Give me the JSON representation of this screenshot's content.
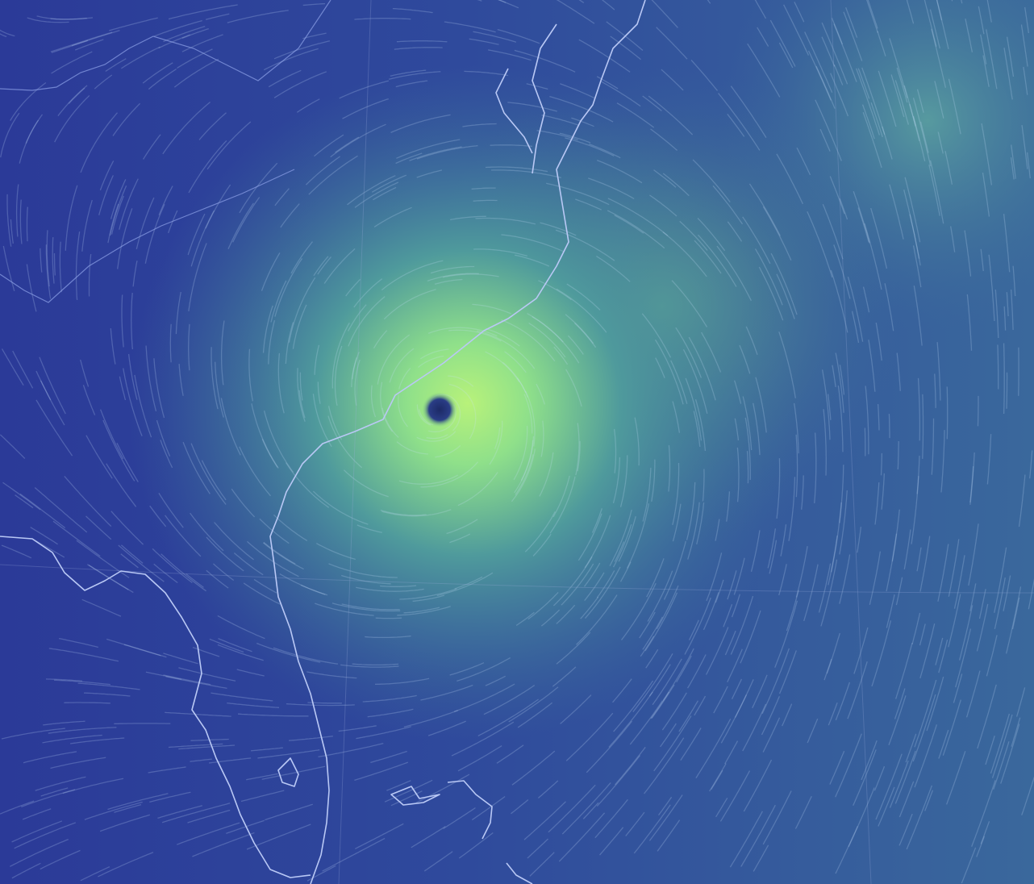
{
  "map": {
    "type": "animated wind streamline map",
    "features": [
      "hurricane-eye",
      "coastlines",
      "state-borders",
      "graticule-lines",
      "wind-streamlines"
    ],
    "colors": {
      "calm": "#2b3a98",
      "moderate": "#3d6e9a",
      "strong": "#7fd88a",
      "peak": "#b8f27a",
      "eye": "#1c2a66",
      "coastline": "#b9c8f5",
      "streamline": "#cfe3ff"
    },
    "icons": [
      "hurricane-eye-icon"
    ]
  }
}
